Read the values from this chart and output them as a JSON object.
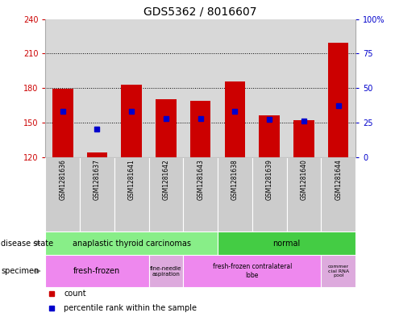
{
  "title": "GDS5362 / 8016607",
  "samples": [
    "GSM1281636",
    "GSM1281637",
    "GSM1281641",
    "GSM1281642",
    "GSM1281643",
    "GSM1281638",
    "GSM1281639",
    "GSM1281640",
    "GSM1281644"
  ],
  "count_values": [
    179,
    124,
    183,
    170,
    169,
    186,
    156,
    152,
    219
  ],
  "percentile_values": [
    33,
    20,
    33,
    28,
    28,
    33,
    27,
    26,
    37
  ],
  "ylim_left": [
    120,
    240
  ],
  "ylim_right": [
    0,
    100
  ],
  "yticks_left": [
    120,
    150,
    180,
    210,
    240
  ],
  "yticks_right": [
    0,
    25,
    50,
    75,
    100
  ],
  "bar_bottom": 120,
  "bar_width": 0.6,
  "count_color": "#cc0000",
  "percentile_color": "#0000cc",
  "grid_color": "#000000",
  "disease_state_labels": [
    "anaplastic thyroid carcinomas",
    "normal"
  ],
  "specimen_labels": [
    "fresh-frozen",
    "fine-needle\naspiration",
    "fresh-frozen contralateral\nlobe",
    "commer\ncial RNA\npool"
  ],
  "disease_state_color_atc": "#88ee88",
  "disease_state_color_normal": "#44cc44",
  "specimen_color_main": "#ee88ee",
  "specimen_color_alt": "#ddaadd",
  "plot_bg": "#d8d8d8",
  "title_fontsize": 10,
  "tick_fontsize": 7,
  "label_color_left": "#cc0000",
  "label_color_right": "#0000cc",
  "border_color": "#aaaaaa"
}
